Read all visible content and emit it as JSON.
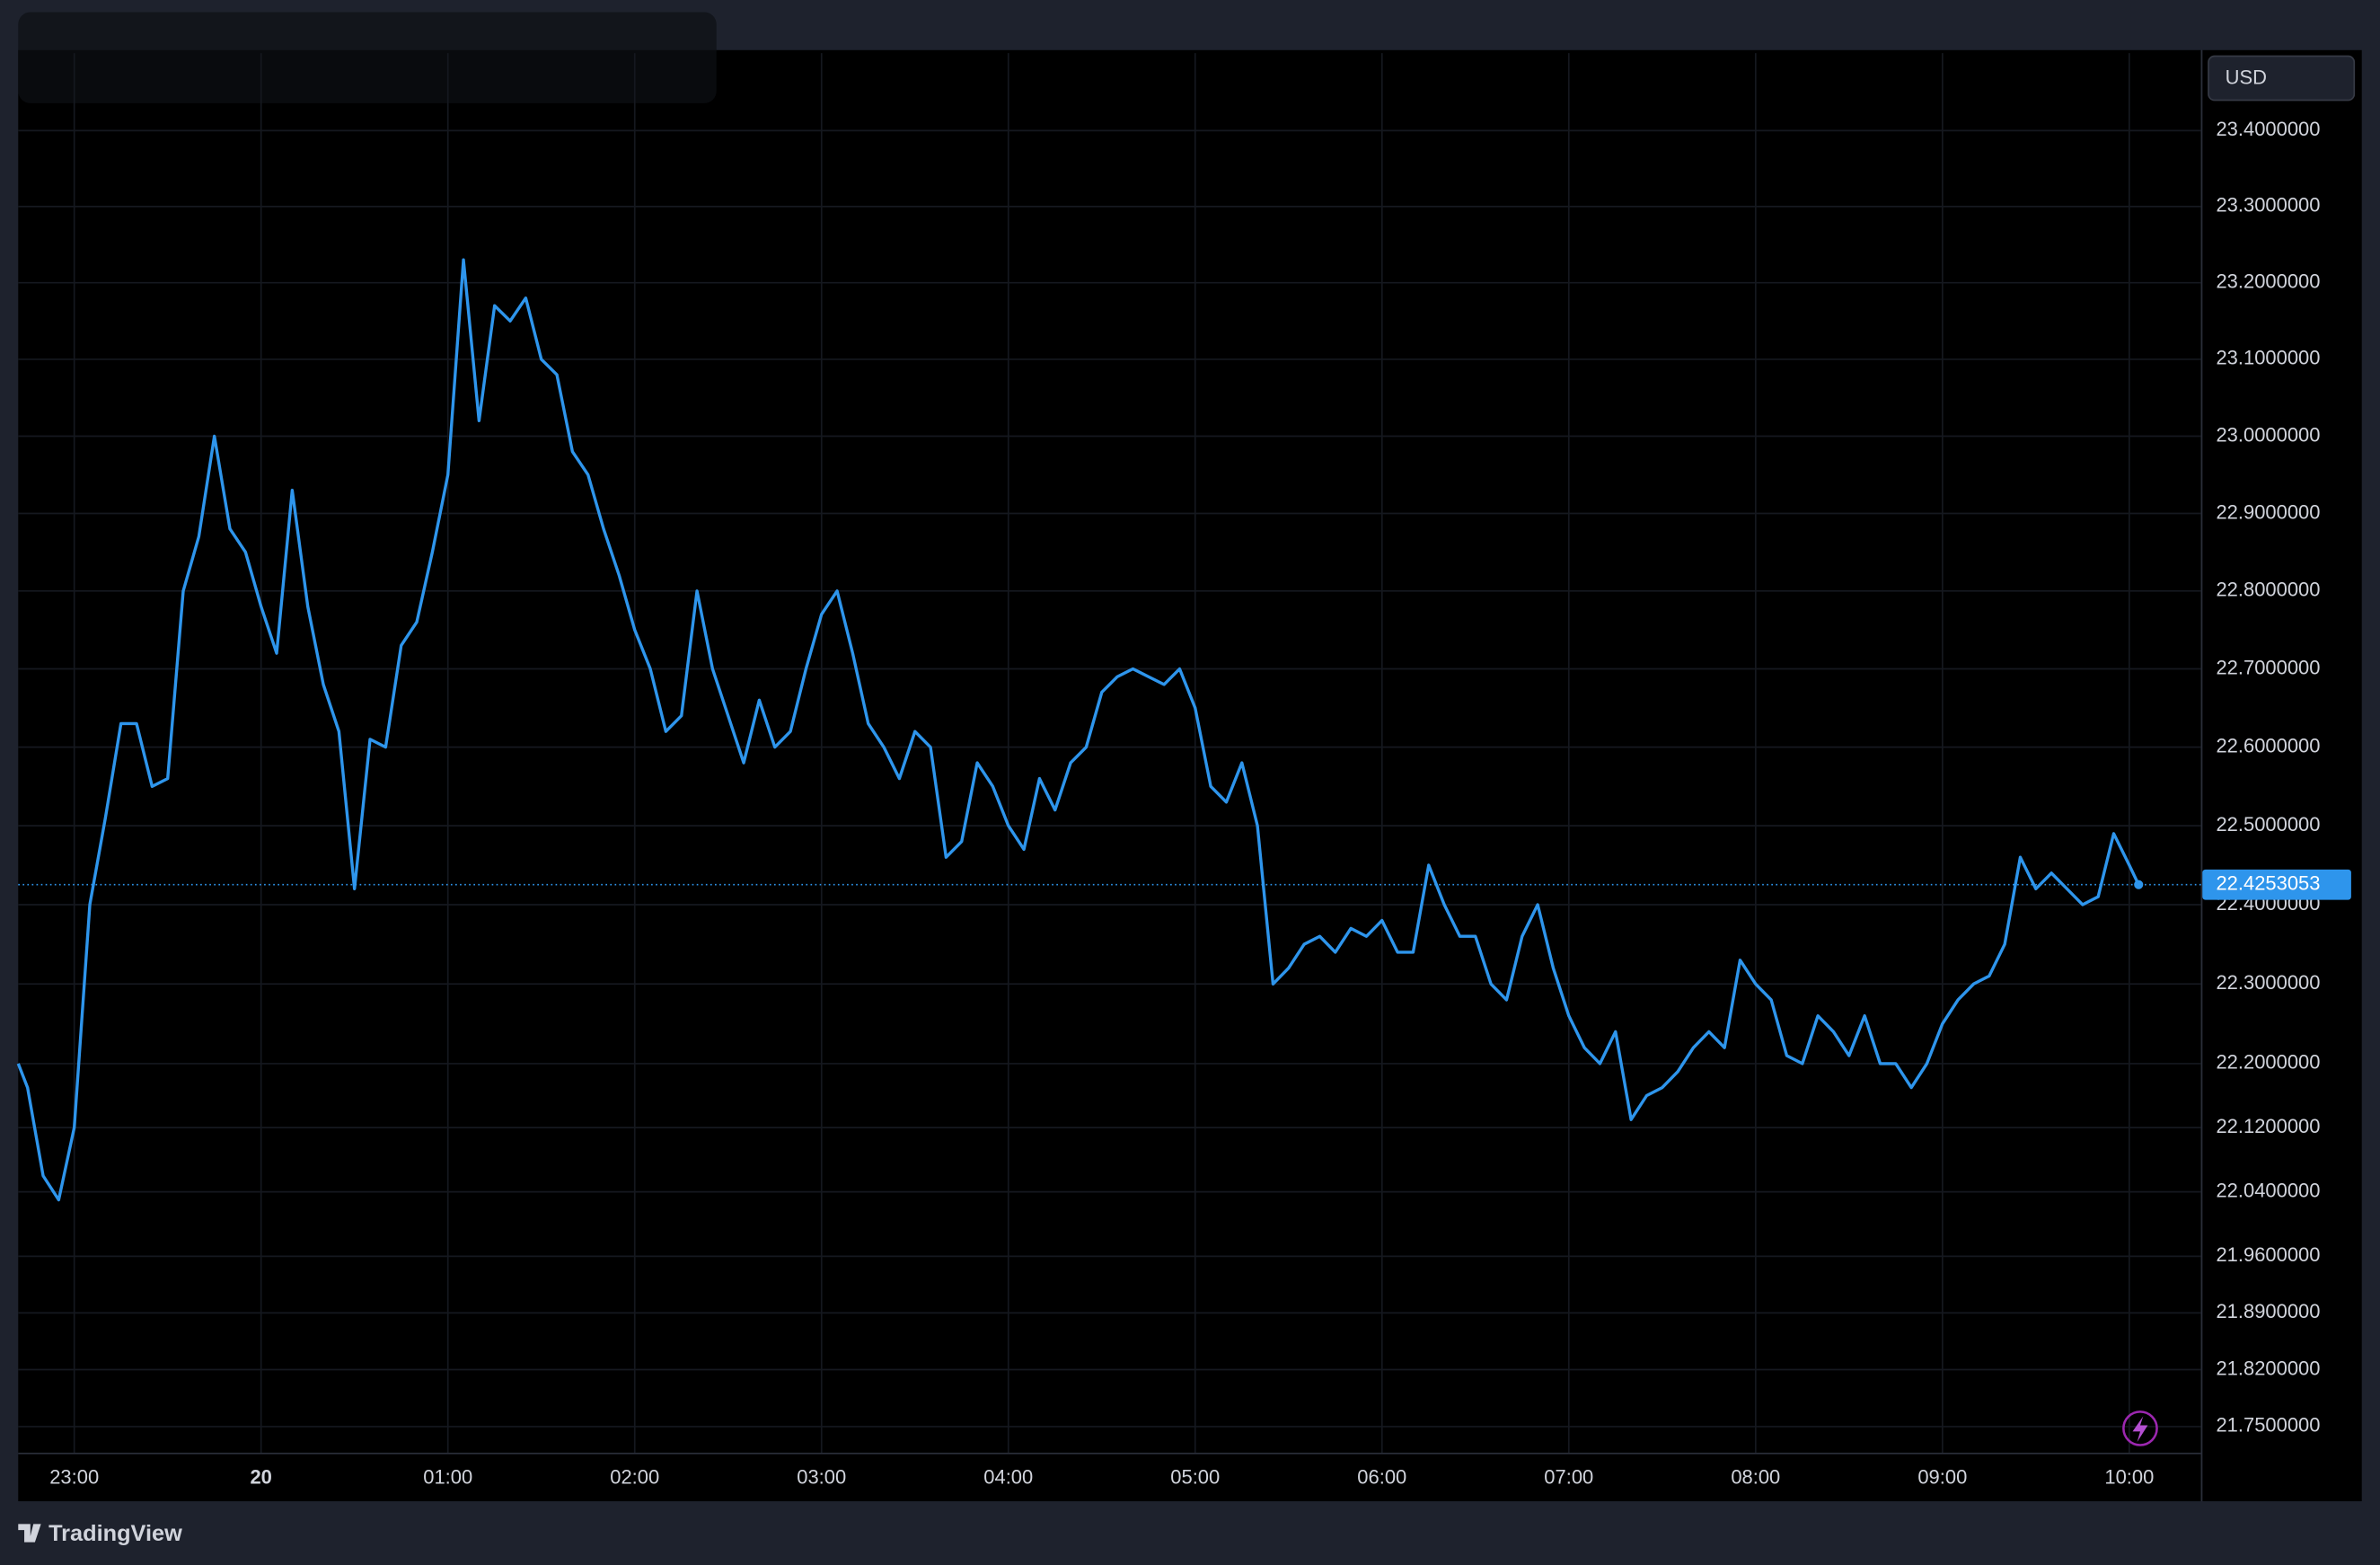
{
  "chart_data": {
    "type": "line",
    "y_axis_unit": "USD",
    "source": "TradingView",
    "log_scale": true,
    "grid": true,
    "color": "#2e95ec",
    "last_value": 22.4253053,
    "xlim": [
      "22:42",
      "10:23"
    ],
    "xticks": [
      "23:00",
      {
        "value": "00:00",
        "label": "20"
      },
      "01:00",
      "02:00",
      "03:00",
      "04:00",
      "05:00",
      "06:00",
      "07:00",
      "08:00",
      "09:00",
      "10:00"
    ],
    "ylim": [
      21.718,
      23.5025
    ],
    "yticks": [
      {
        "value": 23.4,
        "label": "23.4000000"
      },
      {
        "value": 23.3,
        "label": "23.3000000"
      },
      {
        "value": 23.2,
        "label": "23.2000000"
      },
      {
        "value": 23.1,
        "label": "23.1000000"
      },
      {
        "value": 23.0,
        "label": "23.0000000"
      },
      {
        "value": 22.9,
        "label": "22.9000000"
      },
      {
        "value": 22.8,
        "label": "22.8000000"
      },
      {
        "value": 22.7,
        "label": "22.7000000"
      },
      {
        "value": 22.6,
        "label": "22.6000000"
      },
      {
        "value": 22.5,
        "label": "22.5000000"
      },
      {
        "value": 22.4,
        "label": "22.4000000"
      },
      {
        "value": 22.3,
        "label": "22.3000000"
      },
      {
        "value": 22.2,
        "label": "22.2000000"
      },
      {
        "value": 22.12,
        "label": "22.1200000"
      },
      {
        "value": 22.04,
        "label": "22.0400000"
      },
      {
        "value": 21.96,
        "label": "21.9600000"
      },
      {
        "value": 21.89,
        "label": "21.8900000"
      },
      {
        "value": 21.82,
        "label": "21.8200000"
      },
      {
        "value": 21.75,
        "label": "21.7500000"
      }
    ],
    "x": [
      "22:42",
      "22:45",
      "22:50",
      "22:55",
      "23:00",
      "23:05",
      "23:10",
      "23:15",
      "23:20",
      "23:25",
      "23:30",
      "23:35",
      "23:40",
      "23:45",
      "23:50",
      "23:55",
      "00:00",
      "00:05",
      "00:10",
      "00:15",
      "00:20",
      "00:25",
      "00:30",
      "00:35",
      "00:40",
      "00:45",
      "00:50",
      "00:55",
      "01:00",
      "01:05",
      "01:10",
      "01:15",
      "01:20",
      "01:25",
      "01:30",
      "01:35",
      "01:40",
      "01:45",
      "01:50",
      "01:55",
      "02:00",
      "02:05",
      "02:10",
      "02:15",
      "02:20",
      "02:25",
      "02:30",
      "02:35",
      "02:40",
      "02:45",
      "02:50",
      "02:55",
      "03:00",
      "03:05",
      "03:10",
      "03:15",
      "03:20",
      "03:25",
      "03:30",
      "03:35",
      "03:40",
      "03:45",
      "03:50",
      "03:55",
      "04:00",
      "04:05",
      "04:10",
      "04:15",
      "04:20",
      "04:25",
      "04:30",
      "04:35",
      "04:40",
      "04:45",
      "04:50",
      "04:55",
      "05:00",
      "05:05",
      "05:10",
      "05:15",
      "05:20",
      "05:25",
      "05:30",
      "05:35",
      "05:40",
      "05:45",
      "05:50",
      "05:55",
      "06:00",
      "06:05",
      "06:10",
      "06:15",
      "06:20",
      "06:25",
      "06:30",
      "06:35",
      "06:40",
      "06:45",
      "06:50",
      "06:55",
      "07:00",
      "07:05",
      "07:10",
      "07:15",
      "07:20",
      "07:25",
      "07:30",
      "07:35",
      "07:40",
      "07:45",
      "07:50",
      "07:55",
      "08:00",
      "08:05",
      "08:10",
      "08:15",
      "08:20",
      "08:25",
      "08:30",
      "08:35",
      "08:40",
      "08:45",
      "08:50",
      "08:55",
      "09:00",
      "09:05",
      "09:10",
      "09:15",
      "09:20",
      "09:25",
      "09:30",
      "09:35",
      "09:40",
      "09:45",
      "09:50",
      "09:55",
      "10:00",
      "10:03"
    ],
    "values": [
      22.2,
      22.17,
      22.06,
      22.03,
      22.12,
      22.4,
      22.51,
      22.63,
      22.63,
      22.55,
      22.56,
      22.8,
      22.87,
      23.0,
      22.88,
      22.85,
      22.78,
      22.72,
      22.93,
      22.78,
      22.68,
      22.62,
      22.42,
      22.61,
      22.6,
      22.73,
      22.76,
      22.85,
      22.95,
      23.23,
      23.02,
      23.17,
      23.15,
      23.18,
      23.1,
      23.08,
      22.98,
      22.95,
      22.88,
      22.82,
      22.75,
      22.7,
      22.62,
      22.64,
      22.8,
      22.7,
      22.64,
      22.58,
      22.66,
      22.6,
      22.62,
      22.7,
      22.77,
      22.8,
      22.72,
      22.63,
      22.6,
      22.56,
      22.62,
      22.6,
      22.46,
      22.48,
      22.58,
      22.55,
      22.5,
      22.47,
      22.56,
      22.52,
      22.58,
      22.6,
      22.67,
      22.69,
      22.7,
      22.69,
      22.68,
      22.7,
      22.65,
      22.55,
      22.53,
      22.58,
      22.5,
      22.3,
      22.32,
      22.35,
      22.36,
      22.34,
      22.37,
      22.36,
      22.38,
      22.34,
      22.34,
      22.45,
      22.4,
      22.36,
      22.36,
      22.3,
      22.28,
      22.36,
      22.4,
      22.32,
      22.26,
      22.22,
      22.2,
      22.24,
      22.13,
      22.16,
      22.17,
      22.19,
      22.22,
      22.24,
      22.22,
      22.33,
      22.3,
      22.28,
      22.21,
      22.2,
      22.26,
      22.24,
      22.21,
      22.26,
      22.2,
      22.2,
      22.17,
      22.2,
      22.25,
      22.28,
      22.3,
      22.31,
      22.35,
      22.46,
      22.42,
      22.44,
      22.42,
      22.4,
      22.41,
      22.49,
      22.45,
      22.4253053
    ]
  }
}
